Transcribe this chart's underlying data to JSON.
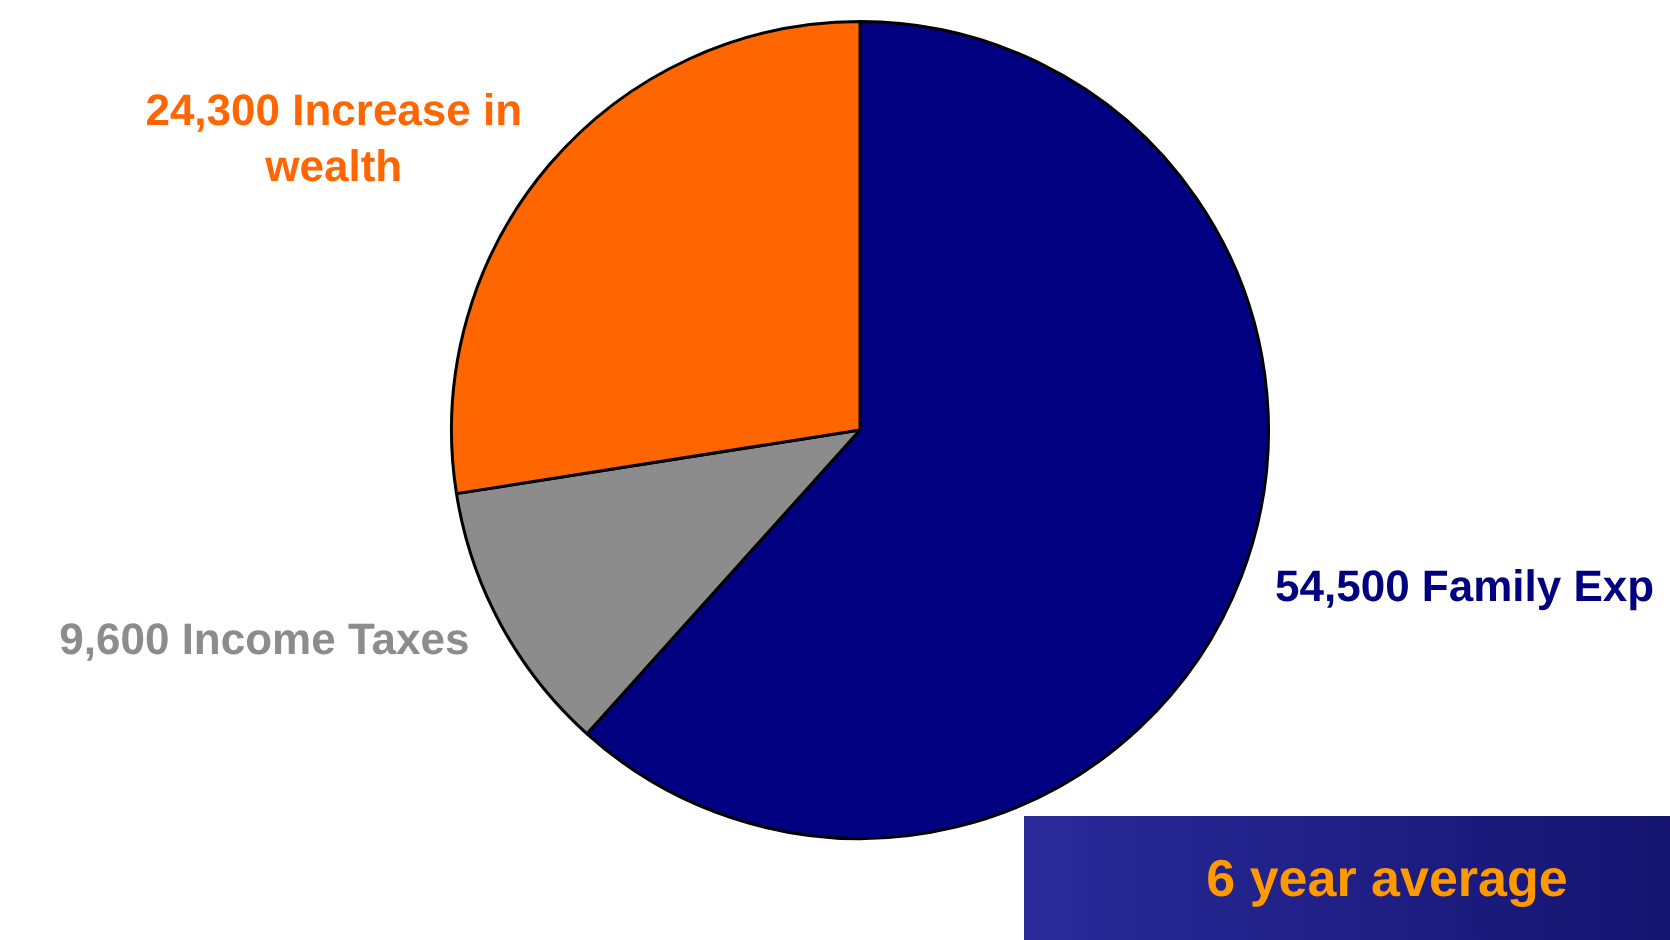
{
  "chart_data": {
    "type": "pie",
    "categories": [
      "Family Exp",
      "Income Taxes",
      "Increase in wealth"
    ],
    "values": [
      54500,
      9600,
      24300
    ],
    "value_labels": [
      "54,500",
      "9,600",
      "24,300"
    ],
    "colors": [
      "#000080",
      "#8c8c8c",
      "#ff6600"
    ],
    "legend": false,
    "annotations": [
      "6 year average"
    ]
  }
}
